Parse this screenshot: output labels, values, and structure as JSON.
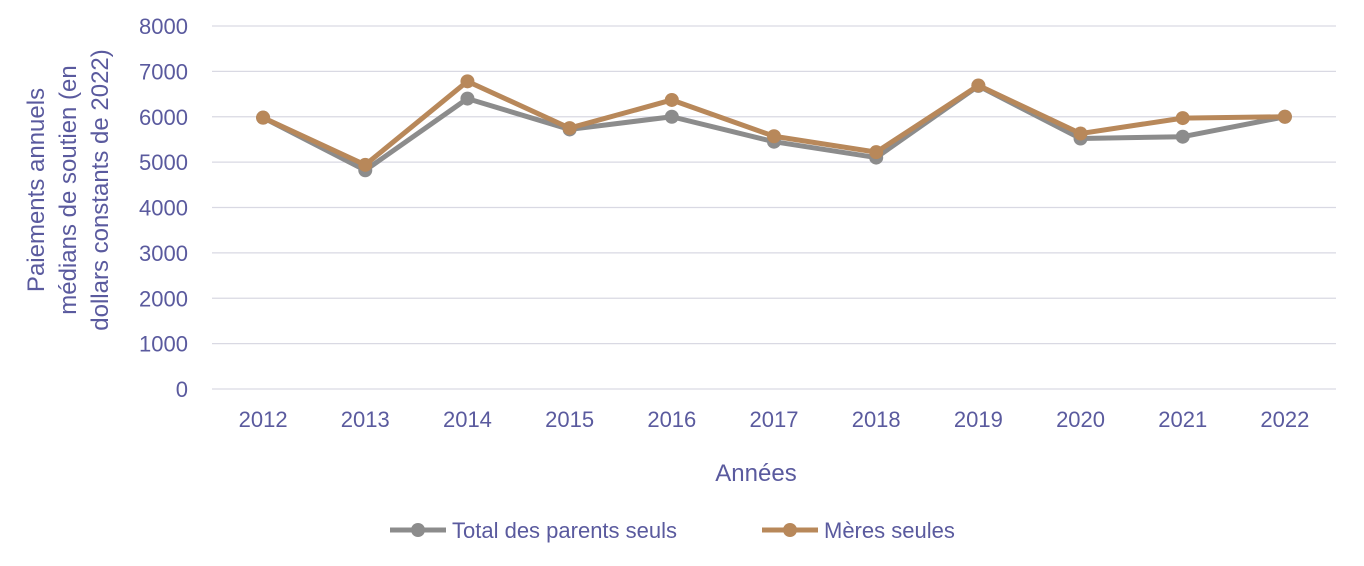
{
  "chart_data": {
    "type": "line",
    "title": "",
    "xlabel": "Années",
    "ylabel_lines": [
      "Paiements annuels",
      "médians de soutien (en",
      "dollars constants de 2022)"
    ],
    "categories": [
      "2012",
      "2013",
      "2014",
      "2015",
      "2016",
      "2017",
      "2018",
      "2019",
      "2020",
      "2021",
      "2022"
    ],
    "ylim": [
      0,
      8000
    ],
    "yticks": [
      "0",
      "1000",
      "2000",
      "3000",
      "4000",
      "5000",
      "6000",
      "7000",
      "8000"
    ],
    "grid": true,
    "legend_position": "bottom",
    "series": [
      {
        "name": "Total des parents seuls",
        "color": "#8c8c8c",
        "values": [
          5980,
          4820,
          6400,
          5720,
          6000,
          5450,
          5100,
          6680,
          5520,
          5560,
          6000
        ]
      },
      {
        "name": "Mères seules",
        "color": "#b8885a",
        "values": [
          5980,
          4940,
          6780,
          5750,
          6370,
          5570,
          5220,
          6690,
          5630,
          5970,
          6000
        ]
      }
    ]
  }
}
